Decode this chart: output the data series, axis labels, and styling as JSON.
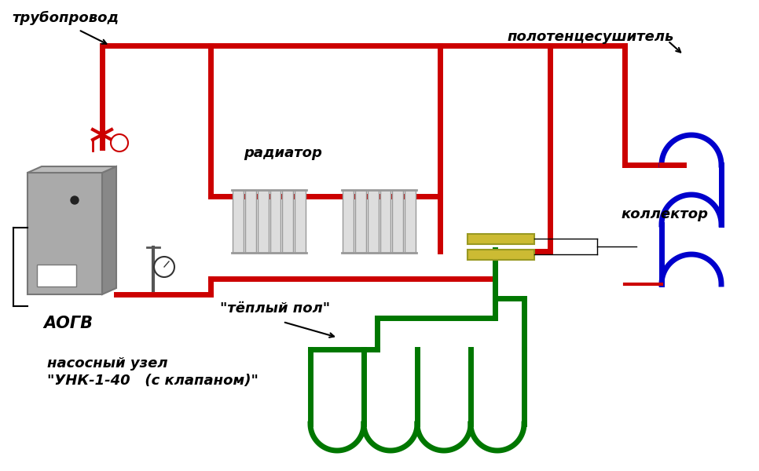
{
  "bg_color": "#ffffff",
  "red": "#cc0000",
  "blue": "#0000cc",
  "green": "#007700",
  "dark_green": "#006600",
  "gray_light": "#cccccc",
  "gray_dark": "#999999",
  "yellow": "#ddcc44",
  "black": "#000000",
  "line_width": 5,
  "labels": {
    "truboprovod": "трубопровод",
    "radiator": "радиатор",
    "polotentsesushitel": "полотенцесушитель",
    "kollektor": "коллектор",
    "aogv": "АОГВ",
    "tepliy_pol": "\"тёплый пол\"",
    "nasosniy": "насосный узел",
    "unk": "\"УНК-1-40   (с клапаном)\""
  }
}
